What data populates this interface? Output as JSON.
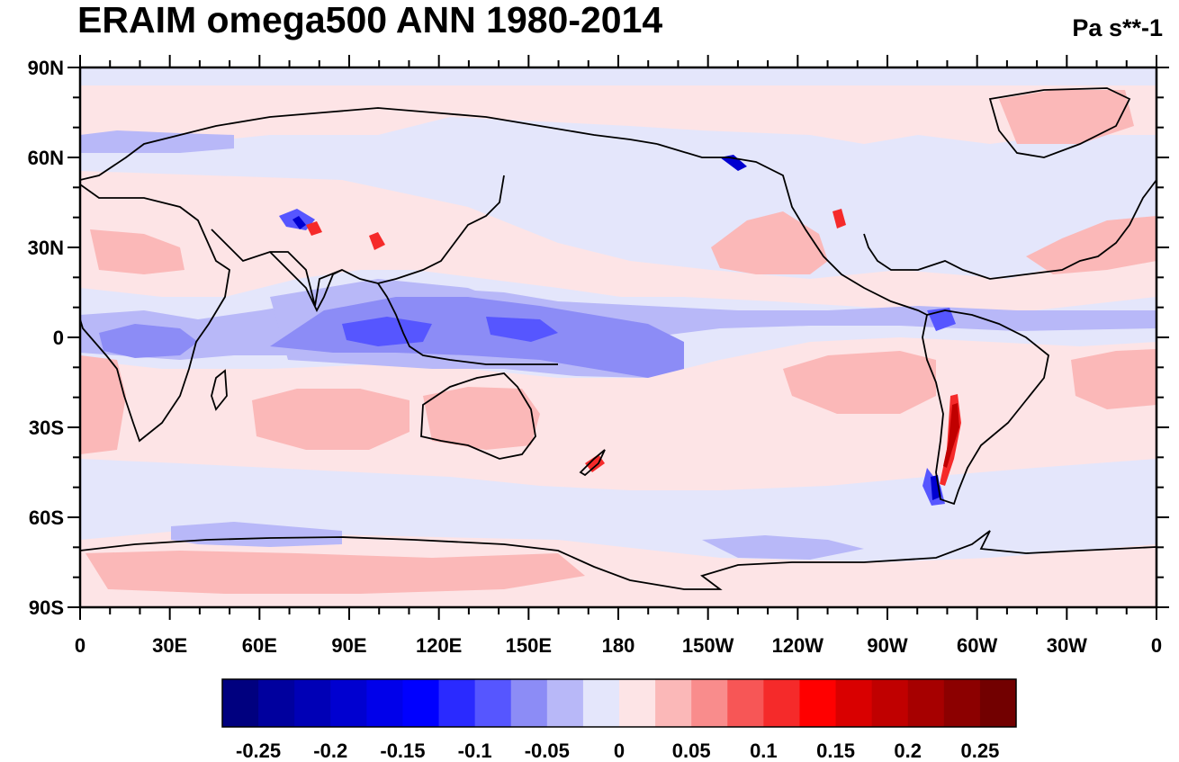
{
  "title": "ERAIM omega500 ANN 1980-2014",
  "units": "Pa s**-1",
  "map": {
    "projection": "cylindrical equidistant",
    "lon_range": [
      0,
      360
    ],
    "lat_range": [
      -90,
      90
    ],
    "lat_ticks": [
      {
        "value": 90,
        "label": "90N"
      },
      {
        "value": 60,
        "label": "60N"
      },
      {
        "value": 30,
        "label": "30N"
      },
      {
        "value": 0,
        "label": "0"
      },
      {
        "value": -30,
        "label": "30S"
      },
      {
        "value": -60,
        "label": "60S"
      },
      {
        "value": -90,
        "label": "90S"
      }
    ],
    "lon_ticks": [
      {
        "value": 0,
        "label": "0"
      },
      {
        "value": 30,
        "label": "30E"
      },
      {
        "value": 60,
        "label": "60E"
      },
      {
        "value": 90,
        "label": "90E"
      },
      {
        "value": 120,
        "label": "120E"
      },
      {
        "value": 150,
        "label": "150E"
      },
      {
        "value": 180,
        "label": "180"
      },
      {
        "value": 210,
        "label": "150W"
      },
      {
        "value": 240,
        "label": "120W"
      },
      {
        "value": 270,
        "label": "90W"
      },
      {
        "value": 300,
        "label": "60W"
      },
      {
        "value": 330,
        "label": "30W"
      },
      {
        "value": 360,
        "label": "0"
      }
    ],
    "background_color": "#e4e6fb"
  },
  "colorbar": {
    "colors": [
      "#00007f",
      "#00009e",
      "#0000b6",
      "#0000d0",
      "#0000ea",
      "#0000ff",
      "#2a2aff",
      "#5656ff",
      "#8c8cf6",
      "#b8b8f8",
      "#e4e6fb",
      "#fde4e6",
      "#fbb8b8",
      "#f98c8c",
      "#f75656",
      "#f52a2a",
      "#ff0000",
      "#d90000",
      "#c00000",
      "#a60000",
      "#8c0000",
      "#720000"
    ],
    "labels": [
      "-0.25",
      "-0.2",
      "-0.15",
      "-0.1",
      "-0.05",
      "0",
      "0.05",
      "0.1",
      "0.15",
      "0.2",
      "0.25"
    ]
  }
}
